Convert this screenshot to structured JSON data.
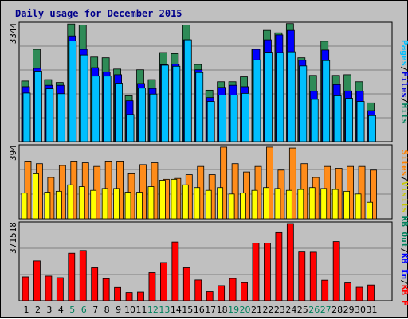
{
  "chart_data": {
    "type": "bar",
    "title": "Daily usage for December 2015",
    "categories": [
      "1",
      "2",
      "3",
      "4",
      "5",
      "6",
      "7",
      "8",
      "9",
      "10",
      "11",
      "12",
      "13",
      "14",
      "15",
      "16",
      "17",
      "18",
      "19",
      "20",
      "21",
      "22",
      "23",
      "24",
      "25",
      "26",
      "27",
      "28",
      "29",
      "30",
      "31"
    ],
    "weekend_days": [
      "5",
      "6",
      "12",
      "13",
      "19",
      "20",
      "26",
      "27"
    ],
    "panels": [
      {
        "id": "hits-files-pages",
        "max_label": "3344",
        "ylim": [
          0,
          3344
        ],
        "grid": true,
        "legend": [
          {
            "text": "Hits",
            "color": "#00805c"
          },
          {
            "text": "Files",
            "color": "#0000d8"
          },
          {
            "text": "Pages",
            "color": "#00c0ff"
          }
        ],
        "series": [
          {
            "name": "Hits",
            "color": "#2e8b57",
            "values": [
              1720,
              2620,
              1760,
              1680,
              3340,
              3310,
              2400,
              2380,
              2060,
              1300,
              2040,
              1760,
              2530,
              2500,
              3310,
              2190,
              1460,
              1700,
              1700,
              1840,
              2610,
              3160,
              3090,
              3350,
              2380,
              1880,
              2850,
              1880,
              1900,
              1700,
              1100
            ]
          },
          {
            "name": "Files",
            "color": "#0000ff",
            "values": [
              1560,
              2080,
              1600,
              1600,
              3000,
              2620,
              2100,
              1980,
              1900,
              1160,
              1650,
              1510,
              2190,
              2200,
              2890,
              2040,
              1250,
              1540,
              1600,
              1560,
              2620,
              2890,
              3030,
              3160,
              2310,
              1430,
              2600,
              1620,
              1440,
              1430,
              880
            ]
          },
          {
            "name": "Pages",
            "color": "#00bfff",
            "values": [
              1380,
              2000,
              1500,
              1360,
              2860,
              2460,
              1860,
              1860,
              1660,
              770,
              1520,
              1350,
              2170,
              2140,
              2890,
              1960,
              1140,
              1320,
              1320,
              1370,
              2320,
              2540,
              2530,
              2550,
              2150,
              1200,
              2300,
              1300,
              1230,
              1140,
              740
            ]
          }
        ]
      },
      {
        "id": "visits-sites",
        "max_label": "394",
        "ylim": [
          0,
          394
        ],
        "grid": true,
        "legend": [
          {
            "text": "Visits",
            "color": "#c8c800"
          },
          {
            "text": "Sites",
            "color": "#ff8000"
          }
        ],
        "series": [
          {
            "name": "Sites",
            "color": "#ff8c1a",
            "values": [
              310,
              300,
              225,
              290,
              310,
              305,
              285,
              310,
              310,
              245,
              295,
              305,
              215,
              220,
              240,
              285,
              240,
              390,
              300,
              255,
              285,
              390,
              265,
              385,
              300,
              225,
              285,
              275,
              285,
              285,
              265
            ]
          },
          {
            "name": "Visits",
            "color": "#ffff00",
            "values": [
              140,
              245,
              145,
              150,
              185,
              175,
              155,
              165,
              165,
              145,
              145,
              175,
              210,
              215,
              185,
              170,
              155,
              170,
              135,
              140,
              155,
              170,
              165,
              155,
              160,
              170,
              165,
              160,
              150,
              135,
              90
            ]
          }
        ]
      },
      {
        "id": "kbytes",
        "max_label": "371518",
        "ylim": [
          0,
          371518
        ],
        "grid": true,
        "legend": [
          {
            "text": "KB F",
            "color": "#ff0000"
          },
          {
            "text": "KB In",
            "color": "#0000ff"
          },
          {
            "text": "KB Out",
            "color": "#00805c"
          }
        ],
        "series": [
          {
            "name": "KB F",
            "color": "#ff0000",
            "values": [
              115000,
              192000,
              119000,
              111000,
              229000,
              242000,
              159000,
              106000,
              64000,
              40000,
              42000,
              136000,
              184000,
              283000,
              159000,
              100000,
              44000,
              73000,
              107000,
              87000,
              278000,
              278000,
              328000,
              371518,
              235000,
              234000,
              99000,
              285000,
              86000,
              65000,
              76000
            ]
          }
        ]
      }
    ]
  }
}
